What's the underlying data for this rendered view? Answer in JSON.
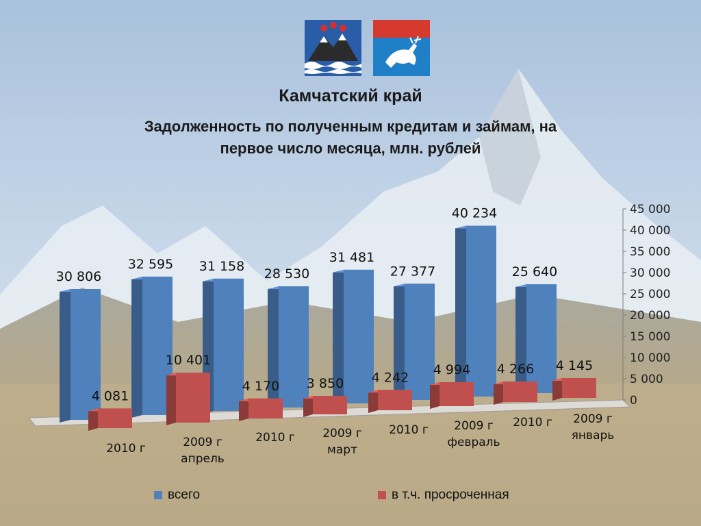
{
  "header": {
    "title": "Камчатский край",
    "subtitle_line1": "Задолженность по полученным кредитам и займам, на",
    "subtitle_line2": "первое число месяца, млн. рублей"
  },
  "colors": {
    "total": "#4f81bd",
    "overdue": "#c0504d"
  },
  "chart_data": {
    "type": "bar",
    "categories": [
      {
        "year": "2010 г",
        "month": ""
      },
      {
        "year": "2009 г",
        "month": "апрель"
      },
      {
        "year": "2010 г",
        "month": ""
      },
      {
        "year": "2009 г",
        "month": "март"
      },
      {
        "year": "2010 г",
        "month": ""
      },
      {
        "year": "2009 г",
        "month": "февраль"
      },
      {
        "year": "2010 г",
        "month": ""
      },
      {
        "year": "2009 г",
        "month": "январь"
      }
    ],
    "series": [
      {
        "name": "всего",
        "values": [
          30806,
          32595,
          31158,
          28530,
          31481,
          27377,
          40234,
          25640
        ]
      },
      {
        "name": "в т.ч. просроченная",
        "values": [
          4081,
          10401,
          4170,
          3850,
          4242,
          4994,
          4266,
          4145
        ]
      }
    ],
    "value_labels_total": [
      "30 806",
      "32 595",
      "31 158",
      "28 530",
      "31 481",
      "27 377",
      "40 234",
      "25 640"
    ],
    "value_labels_overdue": [
      "4 081",
      "10 401",
      "4 170",
      "3 850",
      "4 242",
      "4 994",
      "4 266",
      "4 145"
    ],
    "yticks": [
      "0",
      "5 000",
      "10 000",
      "15 000",
      "20 000",
      "25 000",
      "30 000",
      "35 000",
      "40 000",
      "45 000"
    ],
    "ylim": [
      0,
      45000
    ],
    "legend_position": "bottom",
    "style": "3d-columns"
  }
}
